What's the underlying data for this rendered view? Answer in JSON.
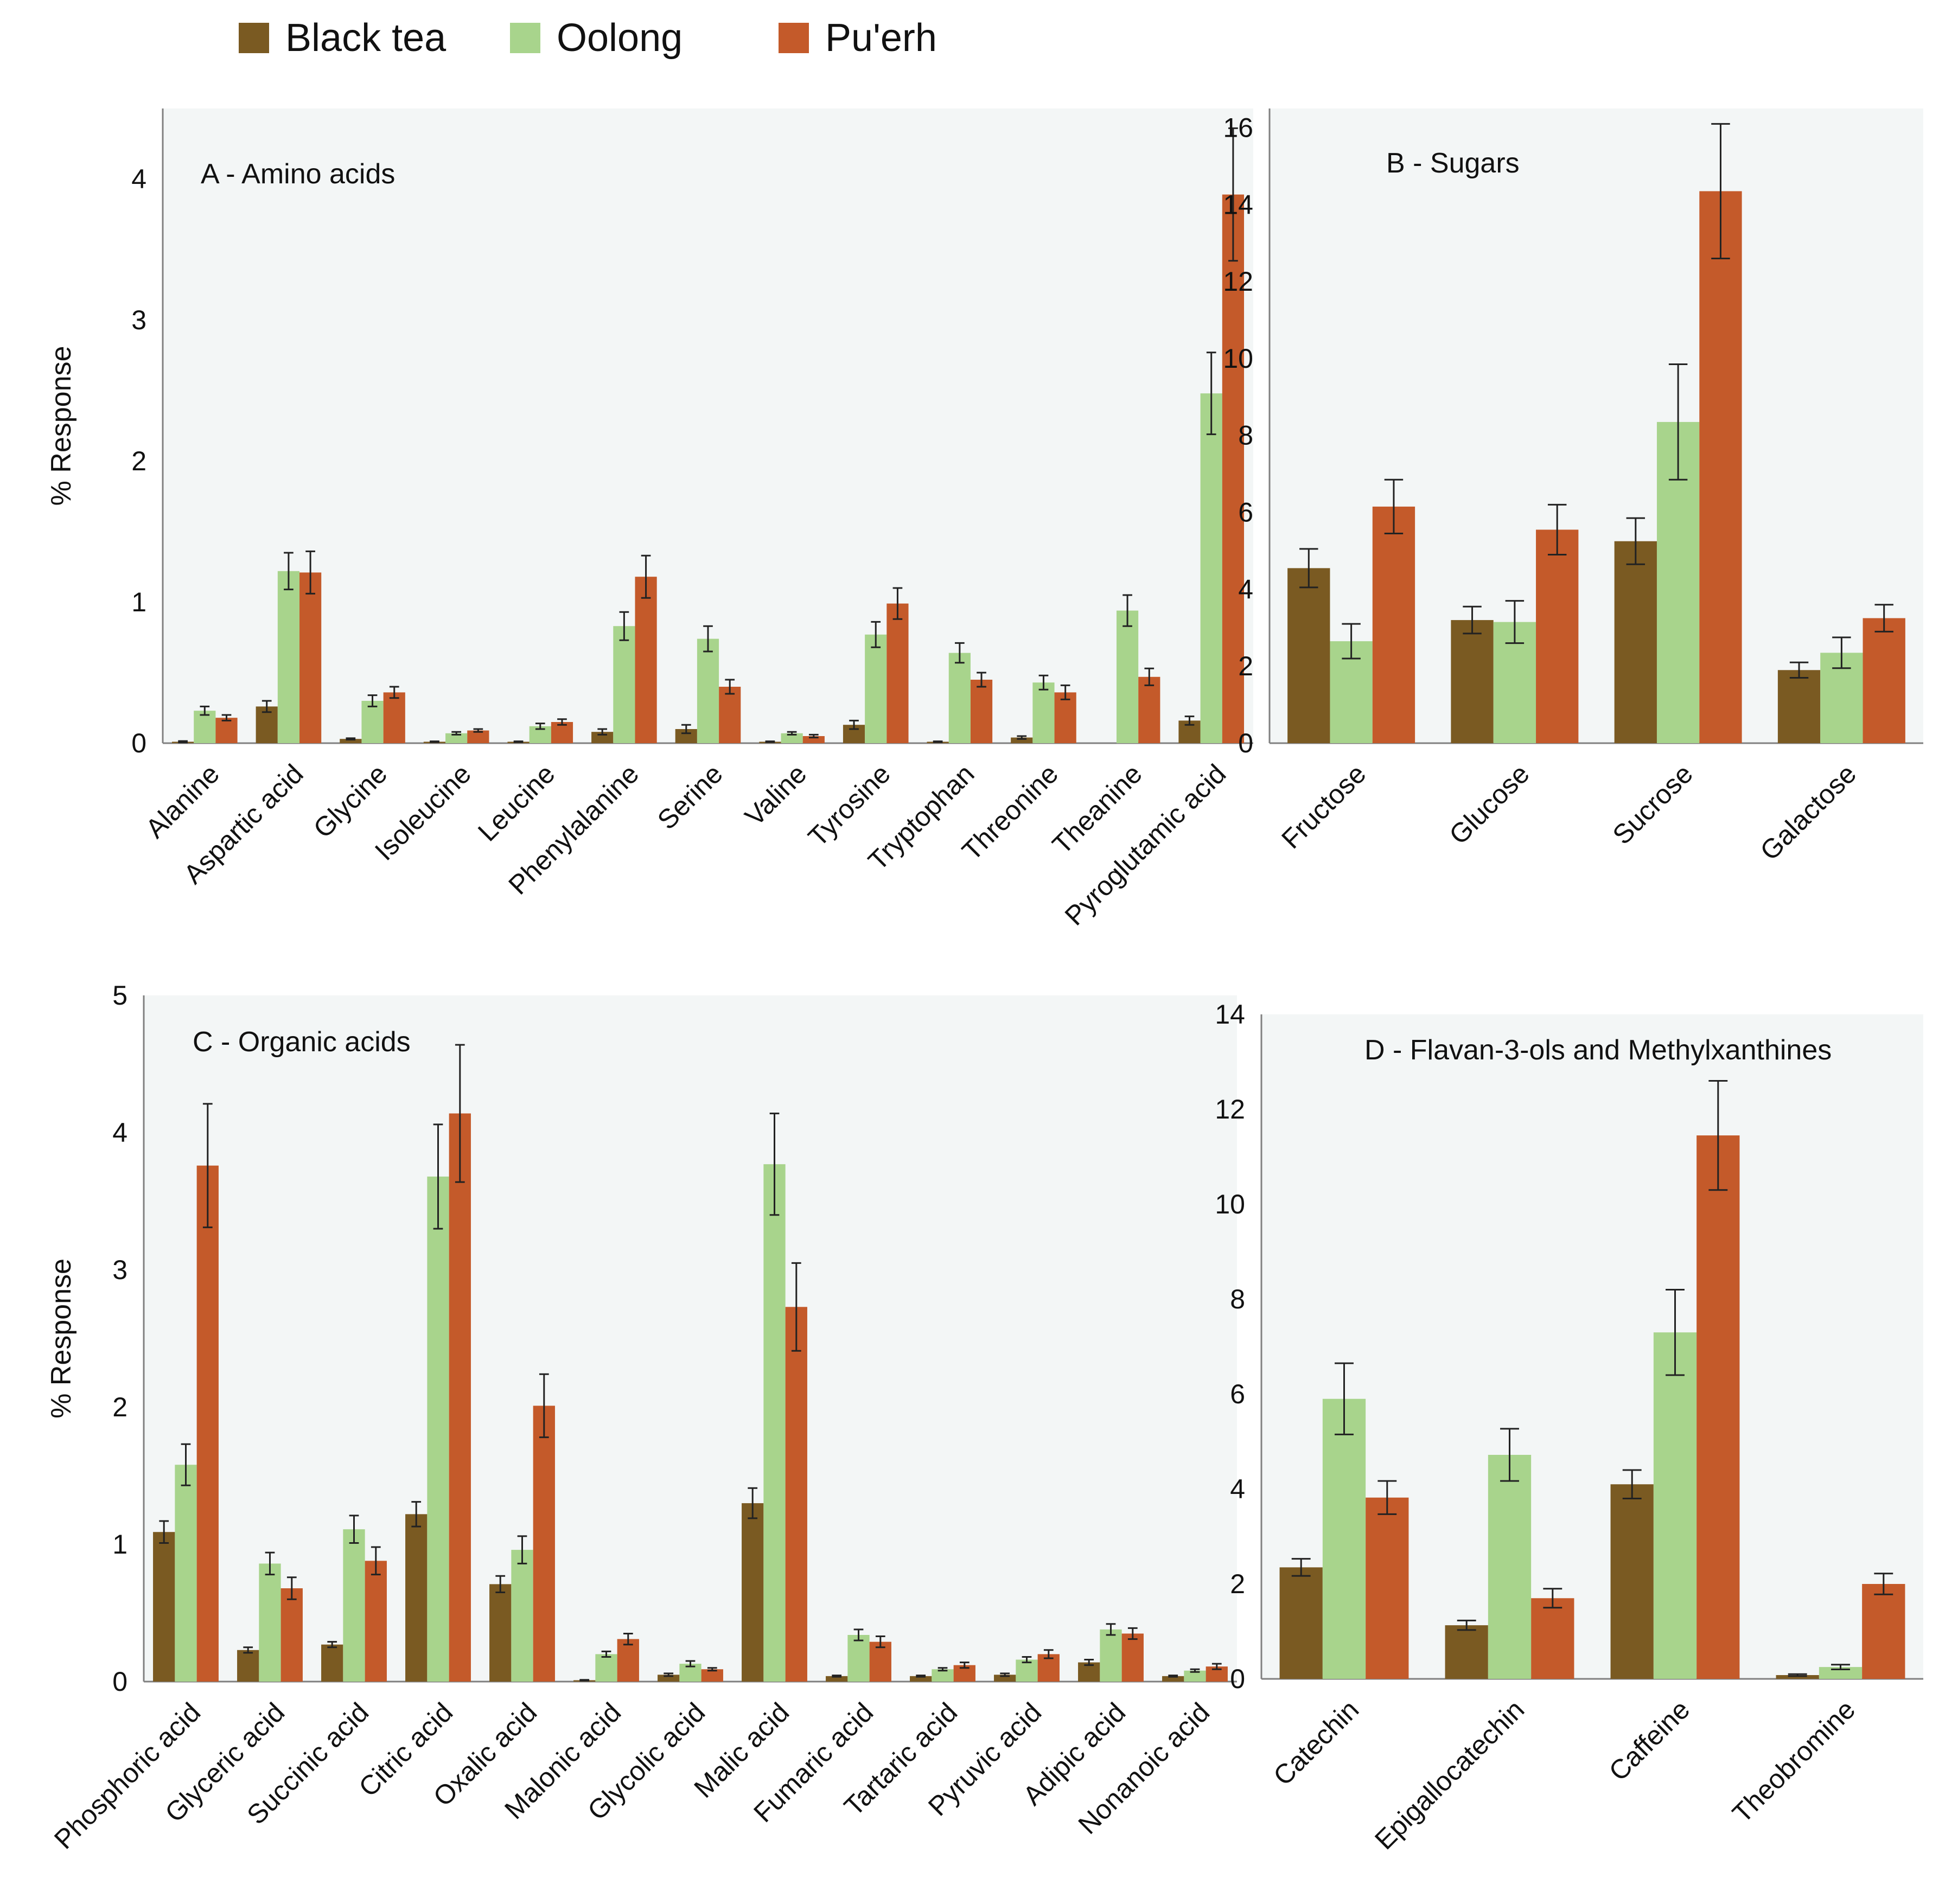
{
  "colors": {
    "plot_bg": "#f3f6f6",
    "axis": "#808080",
    "error_bar": "#222222"
  },
  "legend": [
    {
      "name": "Black tea",
      "color": "#7a5a22"
    },
    {
      "name": "Oolong",
      "color": "#a8d48c"
    },
    {
      "name": "Pu'erh",
      "color": "#c45a2a"
    }
  ],
  "chart_data": [
    {
      "id": "A",
      "type": "bar",
      "title": "A - Amino acids",
      "ylabel": "% Response",
      "ylim": [
        0,
        4.5
      ],
      "yticks": [
        0,
        1,
        2,
        3,
        4
      ],
      "categories": [
        "Alanine",
        "Aspartic acid",
        "Glycine",
        "Isoleucine",
        "Leucine",
        "Phenylalanine",
        "Serine",
        "Valine",
        "Tyrosine",
        "Tryptophan",
        "Threonine",
        "Theanine",
        "Pyroglutamic acid"
      ],
      "series": [
        {
          "name": "Black tea",
          "values": [
            0.01,
            0.26,
            0.03,
            0.01,
            0.01,
            0.08,
            0.1,
            0.01,
            0.13,
            0.01,
            0.04,
            0.0,
            0.16
          ],
          "errors": [
            0.005,
            0.04,
            0.005,
            0.003,
            0.003,
            0.02,
            0.03,
            0.003,
            0.03,
            0.003,
            0.01,
            0.0,
            0.03
          ]
        },
        {
          "name": "Oolong",
          "values": [
            0.23,
            1.22,
            0.3,
            0.07,
            0.12,
            0.83,
            0.74,
            0.07,
            0.77,
            0.64,
            0.43,
            0.94,
            2.48
          ],
          "errors": [
            0.03,
            0.13,
            0.04,
            0.01,
            0.02,
            0.1,
            0.09,
            0.01,
            0.09,
            0.07,
            0.05,
            0.11,
            0.29
          ]
        },
        {
          "name": "Pu'erh",
          "values": [
            0.18,
            1.21,
            0.36,
            0.09,
            0.15,
            1.18,
            0.4,
            0.05,
            0.99,
            0.45,
            0.36,
            0.47,
            3.89
          ],
          "errors": [
            0.02,
            0.15,
            0.04,
            0.01,
            0.02,
            0.15,
            0.05,
            0.01,
            0.11,
            0.05,
            0.05,
            0.06,
            0.47
          ]
        }
      ]
    },
    {
      "id": "B",
      "type": "bar",
      "title": "B - Sugars",
      "ylabel": "",
      "ylim": [
        0,
        16.5
      ],
      "yticks": [
        0,
        2,
        4,
        6,
        8,
        10,
        12,
        14,
        16
      ],
      "categories": [
        "Fructose",
        "Glucose",
        "Sucrose",
        "Galactose"
      ],
      "series": [
        {
          "name": "Black tea",
          "values": [
            4.55,
            3.2,
            5.25,
            1.9
          ],
          "errors": [
            0.5,
            0.35,
            0.6,
            0.2
          ]
        },
        {
          "name": "Oolong",
          "values": [
            2.65,
            3.15,
            8.35,
            2.35
          ],
          "errors": [
            0.45,
            0.55,
            1.5,
            0.4
          ]
        },
        {
          "name": "Pu'erh",
          "values": [
            6.15,
            5.55,
            14.35,
            3.25
          ],
          "errors": [
            0.7,
            0.65,
            1.75,
            0.35
          ]
        }
      ]
    },
    {
      "id": "C",
      "type": "bar",
      "title": "C - Organic acids",
      "ylabel": "% Response",
      "ylim": [
        0,
        5
      ],
      "yticks": [
        0,
        1,
        2,
        3,
        4,
        5
      ],
      "categories": [
        "Phosphoric acid",
        "Glyceric acid",
        "Succinic acid",
        "Citric acid",
        "Oxalic acid",
        "Malonic acid",
        "Glycolic acid",
        "Malic acid",
        "Fumaric acid",
        "Tartaric acid",
        "Pyruvic acid",
        "Adipic acid",
        "Nonanoic acid"
      ],
      "series": [
        {
          "name": "Black tea",
          "values": [
            1.09,
            0.23,
            0.27,
            1.22,
            0.71,
            0.01,
            0.05,
            1.3,
            0.04,
            0.04,
            0.05,
            0.14,
            0.04
          ],
          "errors": [
            0.08,
            0.02,
            0.02,
            0.09,
            0.06,
            0.003,
            0.01,
            0.11,
            0.005,
            0.005,
            0.01,
            0.02,
            0.005
          ]
        },
        {
          "name": "Oolong",
          "values": [
            1.58,
            0.86,
            1.11,
            3.68,
            0.96,
            0.2,
            0.13,
            3.77,
            0.34,
            0.09,
            0.16,
            0.38,
            0.08
          ],
          "errors": [
            0.15,
            0.08,
            0.1,
            0.38,
            0.1,
            0.02,
            0.02,
            0.37,
            0.04,
            0.01,
            0.02,
            0.04,
            0.01
          ]
        },
        {
          "name": "Pu'erh",
          "values": [
            3.76,
            0.68,
            0.88,
            4.14,
            2.01,
            0.31,
            0.09,
            2.73,
            0.29,
            0.12,
            0.2,
            0.35,
            0.11
          ],
          "errors": [
            0.45,
            0.08,
            0.1,
            0.5,
            0.23,
            0.04,
            0.01,
            0.32,
            0.04,
            0.02,
            0.03,
            0.04,
            0.02
          ]
        }
      ]
    },
    {
      "id": "D",
      "type": "bar",
      "title": "D - Flavan-3-ols and Methylxanthines",
      "ylabel": "",
      "ylim": [
        0,
        14
      ],
      "yticks": [
        0,
        2,
        4,
        6,
        8,
        10,
        12,
        14
      ],
      "categories": [
        "Catechin",
        "Epigallocatechin",
        "Caffeine",
        "Theobromine"
      ],
      "series": [
        {
          "name": "Black tea",
          "values": [
            2.35,
            1.13,
            4.1,
            0.08
          ],
          "errors": [
            0.18,
            0.1,
            0.3,
            0.02
          ]
        },
        {
          "name": "Oolong",
          "values": [
            5.9,
            4.72,
            7.3,
            0.25
          ],
          "errors": [
            0.75,
            0.55,
            0.9,
            0.05
          ]
        },
        {
          "name": "Pu'erh",
          "values": [
            3.82,
            1.7,
            11.45,
            2.0
          ],
          "errors": [
            0.35,
            0.2,
            1.15,
            0.22
          ]
        }
      ]
    }
  ]
}
